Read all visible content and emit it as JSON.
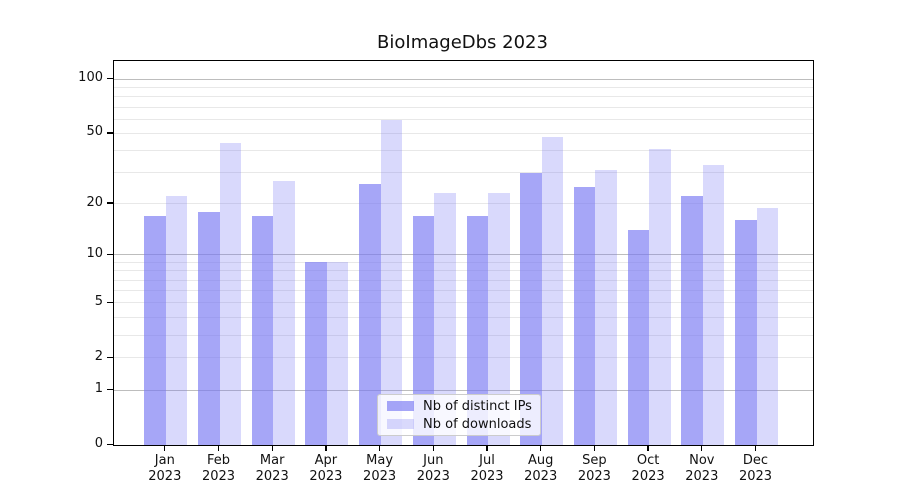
{
  "title": "BioImageDbs 2023",
  "colors": {
    "bar_base": "#7676f3",
    "ip_bar_fill": "rgba(118,118,243,0.65)",
    "dl_bar_fill": "rgba(118,118,243,0.28)",
    "major_grid": "#bdbdbd",
    "minor_grid": "#e8e8e8",
    "spine": "#000000",
    "text": "#111111",
    "legend_border": "#cccccc"
  },
  "legend": {
    "items": [
      "Nb of distinct IPs",
      "Nb of downloads"
    ]
  },
  "chart_data": {
    "type": "bar",
    "title": "BioImageDbs 2023",
    "categories": [
      "Jan 2023",
      "Feb 2023",
      "Mar 2023",
      "Apr 2023",
      "May 2023",
      "Jun 2023",
      "Jul 2023",
      "Aug 2023",
      "Sep 2023",
      "Oct 2023",
      "Nov 2023",
      "Dec 2023"
    ],
    "series": [
      {
        "name": "Nb of distinct IPs",
        "values": [
          17,
          18,
          17,
          9,
          26,
          17,
          17,
          30,
          25,
          14,
          22,
          16
        ]
      },
      {
        "name": "Nb of downloads",
        "values": [
          22,
          44,
          27,
          9,
          59,
          23,
          23,
          48,
          31,
          41,
          33,
          19
        ]
      }
    ],
    "xlabel": "",
    "ylabel": "",
    "yscale": "symlog",
    "yticks": [
      0,
      1,
      2,
      5,
      10,
      20,
      50,
      100
    ],
    "ylim": [
      0,
      126
    ],
    "grid": {
      "orientation": "horizontal",
      "major": [
        1,
        10,
        100
      ],
      "minor": [
        2,
        3,
        4,
        5,
        6,
        7,
        8,
        9,
        20,
        30,
        40,
        50,
        60,
        70,
        80,
        90
      ]
    },
    "legend_position": "lower center"
  }
}
